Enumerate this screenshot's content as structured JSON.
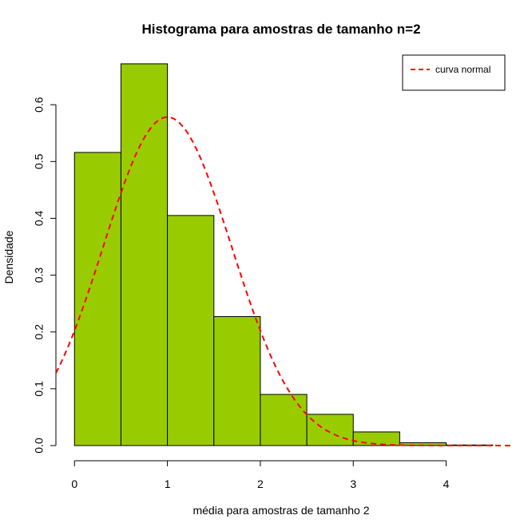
{
  "chart_data": {
    "type": "bar",
    "title": "Histograma para amostras de tamanho n=2",
    "xlabel": "média para amostras de tamanho 2",
    "ylabel": "Densidade",
    "bins": [
      {
        "start": 0.0,
        "end": 0.5,
        "value": 0.516
      },
      {
        "start": 0.5,
        "end": 1.0,
        "value": 0.672
      },
      {
        "start": 1.0,
        "end": 1.5,
        "value": 0.405
      },
      {
        "start": 1.5,
        "end": 2.0,
        "value": 0.227
      },
      {
        "start": 2.0,
        "end": 2.5,
        "value": 0.09
      },
      {
        "start": 2.5,
        "end": 3.0,
        "value": 0.055
      },
      {
        "start": 3.0,
        "end": 3.5,
        "value": 0.024
      },
      {
        "start": 3.5,
        "end": 4.0,
        "value": 0.005
      },
      {
        "start": 4.0,
        "end": 4.5,
        "value": 0.001
      }
    ],
    "bar_color": "#99cc00",
    "normal_curve": {
      "name": "curva normal",
      "mean": 1.0,
      "sd": 0.69,
      "color": "#ff0000",
      "style": "dashed"
    },
    "xlim": [
      -0.2,
      4.7
    ],
    "ylim": [
      0,
      0.7
    ],
    "xticks": [
      "0",
      "1",
      "2",
      "3",
      "4"
    ],
    "yticks": [
      "0.0",
      "0.1",
      "0.2",
      "0.3",
      "0.4",
      "0.5",
      "0.6"
    ],
    "legend": {
      "position": "top-right",
      "entries": [
        "curva normal"
      ]
    },
    "grid": false
  }
}
